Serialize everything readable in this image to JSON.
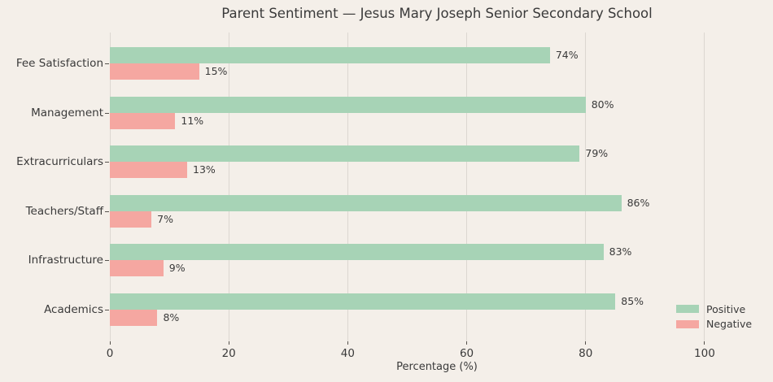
{
  "chart_data": {
    "type": "bar",
    "orientation": "horizontal",
    "title": "Parent Sentiment — Jesus Mary Joseph Senior Secondary School",
    "categories": [
      "Fee Satisfaction",
      "Management",
      "Extracurriculars",
      "Teachers/Staff",
      "Infrastructure",
      "Academics"
    ],
    "series": [
      {
        "name": "Positive",
        "color": "#a7d3b6",
        "values": [
          74,
          80,
          79,
          86,
          83,
          85
        ]
      },
      {
        "name": "Negative",
        "color": "#f5a7a1",
        "values": [
          15,
          11,
          13,
          7,
          9,
          8
        ]
      }
    ],
    "value_suffix": "%",
    "xlabel": "Percentage (%)",
    "xticks": [
      0,
      20,
      40,
      60,
      80,
      100
    ],
    "xlim": [
      0,
      110
    ],
    "grid": true,
    "legend_position": "lower right"
  },
  "colors": {
    "background": "#f4efe9",
    "grid": "#dcd7d1",
    "tick": "#57534e",
    "text": "#3a3a3a"
  }
}
